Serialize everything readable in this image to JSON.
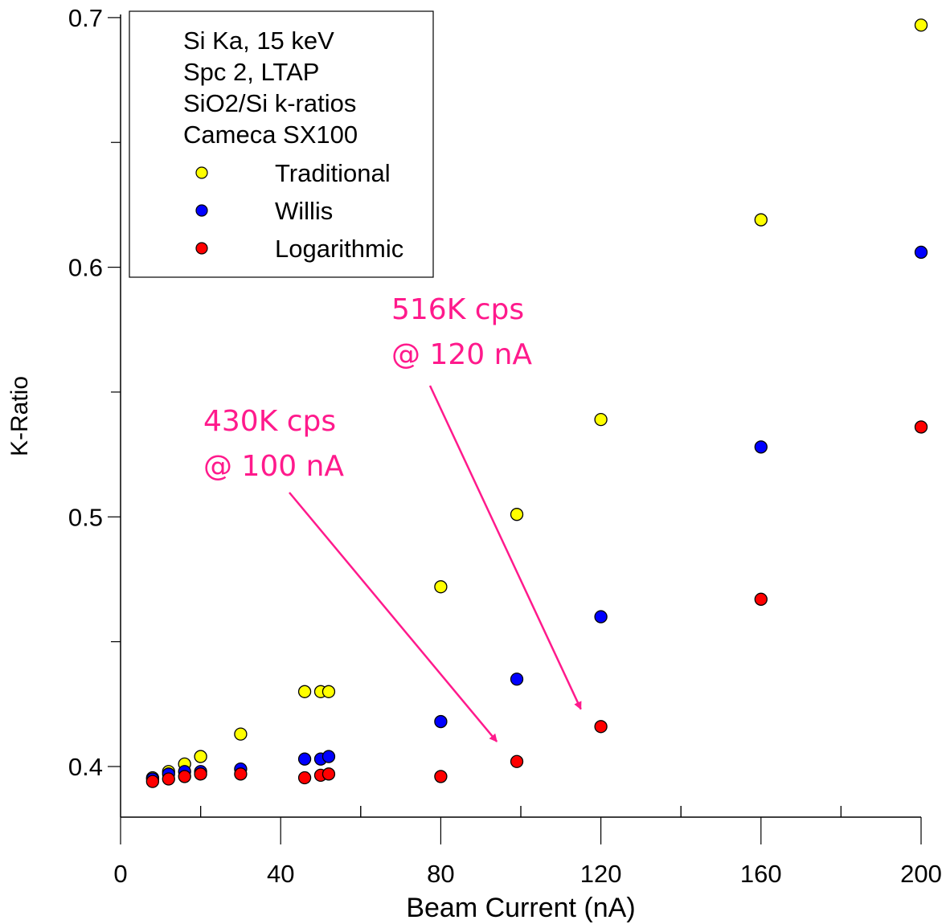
{
  "chart_data": {
    "type": "scatter",
    "xlabel": "Beam Current (nA)",
    "ylabel": "K-Ratio",
    "xlim": [
      0,
      200
    ],
    "ylim": [
      0.38,
      0.7
    ],
    "xticks": [
      0,
      40,
      80,
      120,
      160,
      200
    ],
    "yticks": [
      0.4,
      0.5,
      0.6,
      0.7
    ],
    "ytick_labels": [
      "0.4",
      "0.5",
      "0.6",
      "0.7"
    ],
    "grid": false,
    "legend_position": "top-left",
    "legend_title": [
      "Si Ka, 15 keV",
      "Spc 2, LTAP",
      "SiO2/Si k-ratios",
      "Cameca SX100"
    ],
    "x": [
      8,
      12,
      16,
      20,
      30,
      46,
      50,
      52,
      80,
      99,
      120,
      160,
      200
    ],
    "series": [
      {
        "name": "Traditional",
        "color": "#ffff00",
        "values": [
          0.3955,
          0.398,
          0.401,
          0.404,
          0.413,
          0.43,
          0.43,
          0.43,
          0.472,
          0.501,
          0.539,
          0.619,
          0.697
        ]
      },
      {
        "name": "Willis",
        "color": "#0000ff",
        "values": [
          0.395,
          0.397,
          0.398,
          0.398,
          0.399,
          0.403,
          0.403,
          0.404,
          0.418,
          0.435,
          0.46,
          0.528,
          0.606
        ]
      },
      {
        "name": "Logarithmic",
        "color": "#ff0000",
        "values": [
          0.394,
          0.395,
          0.396,
          0.397,
          0.397,
          0.3955,
          0.3965,
          0.397,
          0.396,
          0.402,
          0.416,
          0.467,
          0.536
        ]
      }
    ],
    "annotations": [
      {
        "lines": [
          "516K cps",
          "@ 120 nA"
        ],
        "points_to": [
          115,
          0.423
        ]
      },
      {
        "lines": [
          "430K cps",
          "@ 100 nA"
        ],
        "points_to": [
          94,
          0.41
        ]
      }
    ],
    "annotation_color": "#ff1a8c"
  }
}
